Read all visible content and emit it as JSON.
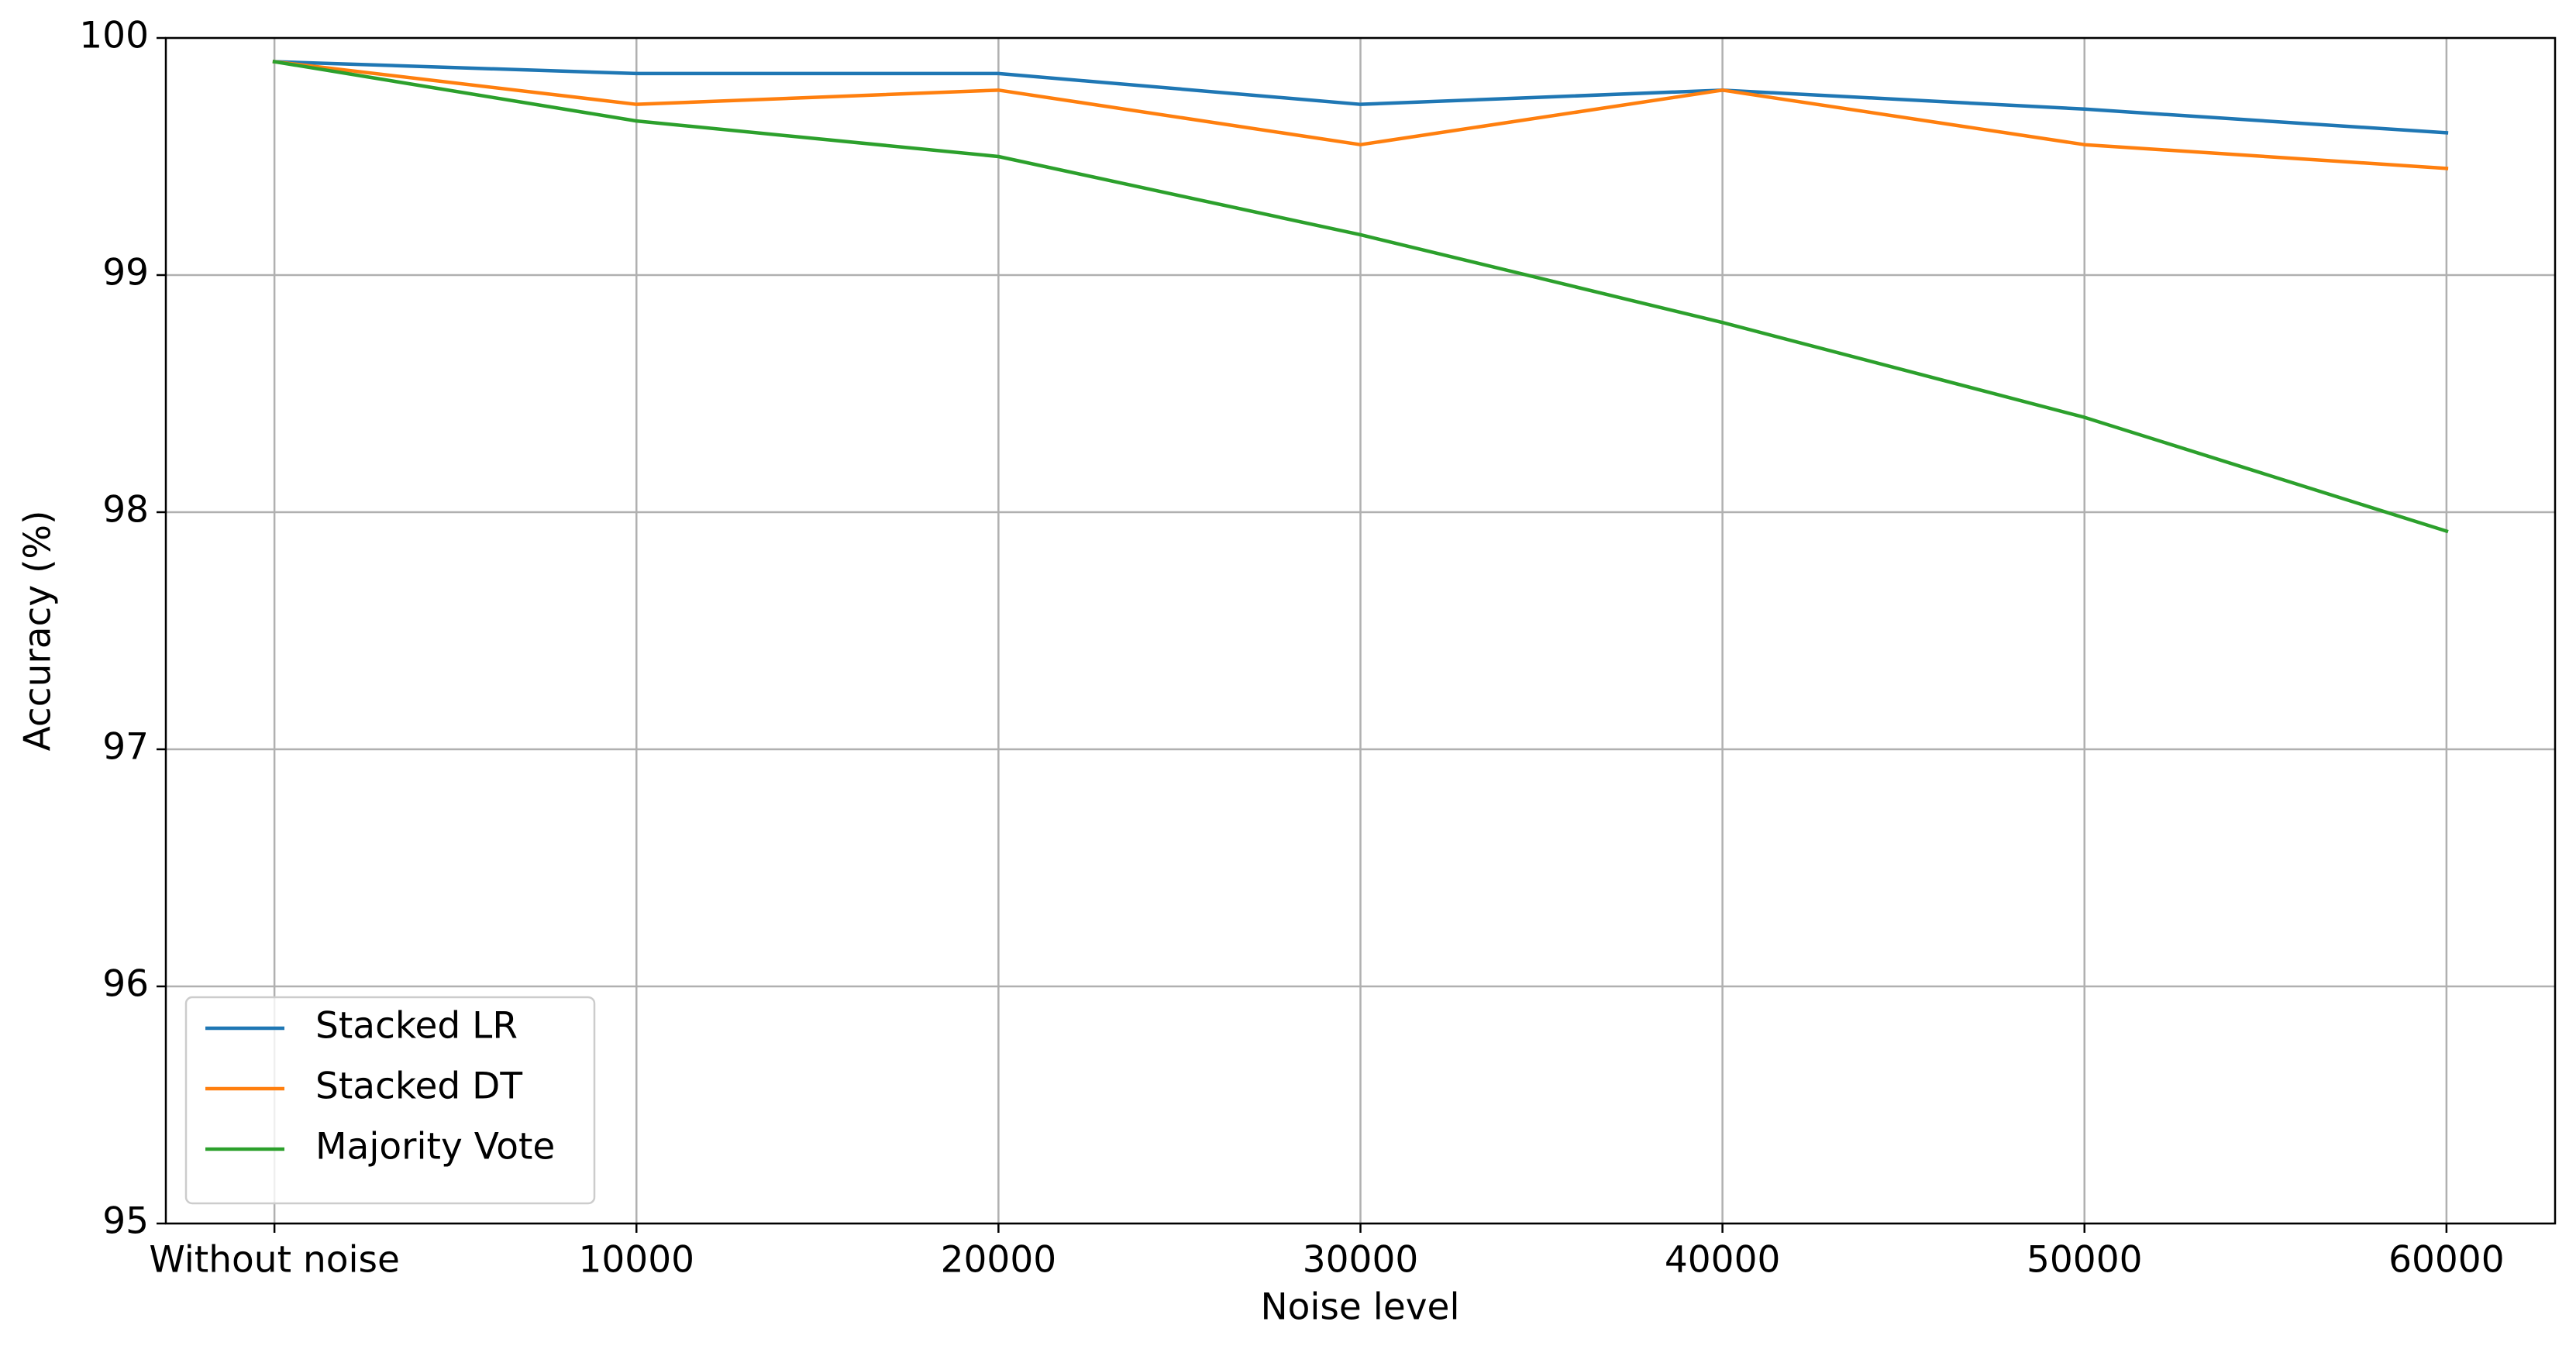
{
  "chart_data": {
    "type": "line",
    "xlabel": "Noise level",
    "ylabel": "Accuracy (%)",
    "categories": [
      "Without noise",
      "10000",
      "20000",
      "30000",
      "40000",
      "50000",
      "60000"
    ],
    "series": [
      {
        "name": "Stacked LR",
        "color": "#1f77b4",
        "values": [
          99.9,
          99.85,
          99.85,
          99.72,
          99.78,
          99.7,
          99.6
        ]
      },
      {
        "name": "Stacked DT",
        "color": "#ff7f0e",
        "values": [
          99.9,
          99.72,
          99.78,
          99.55,
          99.78,
          99.55,
          99.45
        ]
      },
      {
        "name": "Majority Vote",
        "color": "#2ca02c",
        "values": [
          99.9,
          99.65,
          99.5,
          99.17,
          98.8,
          98.4,
          97.92
        ]
      }
    ],
    "ylim": [
      95,
      100
    ],
    "yticks": [
      95,
      96,
      97,
      98,
      99,
      100
    ],
    "grid": true,
    "legend": "lower left"
  }
}
